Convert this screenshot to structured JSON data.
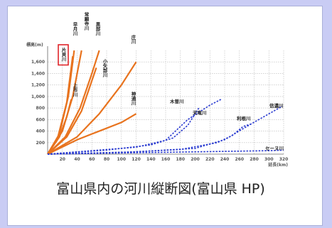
{
  "caption": "富山県内の河川縦断図(富山県 HP)",
  "chart_data": {
    "type": "line",
    "title": "",
    "ylabel": "標高(m)",
    "xlabel": "延長(km)",
    "ylim": [
      0,
      1800
    ],
    "xlim": [
      0,
      320
    ],
    "y_ticks": [
      "200",
      "400",
      "600",
      "800",
      "1,000",
      "1,200",
      "1,400",
      "1,600"
    ],
    "x_ticks": [
      "20",
      "40",
      "60",
      "80",
      "100",
      "120",
      "140",
      "160",
      "180",
      "200",
      "220",
      "240",
      "260",
      "280",
      "300",
      "320"
    ],
    "highlighted_label": "片貝川",
    "series": [
      {
        "name": "片貝川",
        "group": "toyama",
        "x": [
          0,
          14,
          26,
          34
        ],
        "y": [
          0,
          300,
          900,
          1700
        ]
      },
      {
        "name": "早月川",
        "group": "toyama",
        "x": [
          0,
          16,
          28,
          36
        ],
        "y": [
          0,
          350,
          1000,
          1800
        ]
      },
      {
        "name": "常願寺川",
        "group": "toyama",
        "x": [
          0,
          20,
          34,
          46
        ],
        "y": [
          0,
          400,
          1000,
          1800
        ]
      },
      {
        "name": "黒部川",
        "group": "toyama",
        "x": [
          0,
          24,
          44,
          60,
          70
        ],
        "y": [
          0,
          300,
          800,
          1400,
          1800
        ]
      },
      {
        "name": "小矢部川",
        "group": "toyama",
        "x": [
          0,
          26,
          46,
          58,
          66
        ],
        "y": [
          0,
          300,
          750,
          1200,
          1500
        ]
      },
      {
        "name": "上市川",
        "group": "toyama",
        "x": [
          0,
          16,
          26,
          32
        ],
        "y": [
          0,
          300,
          650,
          950
        ]
      },
      {
        "name": "庄川",
        "group": "toyama",
        "x": [
          0,
          40,
          70,
          100,
          120
        ],
        "y": [
          0,
          300,
          700,
          1200,
          1600
        ]
      },
      {
        "name": "神通川",
        "group": "toyama",
        "x": [
          0,
          40,
          70,
          100,
          120
        ],
        "y": [
          0,
          250,
          400,
          550,
          700
        ]
      },
      {
        "name": "木曽川",
        "group": "other",
        "x": [
          0,
          60,
          120,
          160,
          190,
          220,
          235
        ],
        "y": [
          0,
          60,
          120,
          240,
          600,
          850,
          950
        ]
      },
      {
        "name": "天竜川",
        "group": "other",
        "x": [
          0,
          80,
          140,
          170,
          190,
          205
        ],
        "y": [
          0,
          70,
          160,
          280,
          500,
          800
        ]
      },
      {
        "name": "利根川",
        "group": "other",
        "x": [
          0,
          100,
          180,
          230,
          250,
          265,
          275
        ],
        "y": [
          0,
          30,
          80,
          200,
          320,
          480,
          520
        ]
      },
      {
        "name": "信濃川",
        "group": "other",
        "x": [
          0,
          120,
          200,
          240,
          270,
          300,
          318
        ],
        "y": [
          0,
          40,
          100,
          250,
          480,
          700,
          830
        ]
      },
      {
        "name": "セーヌ川",
        "group": "other",
        "x": [
          0,
          100,
          200,
          300,
          320
        ],
        "y": [
          0,
          20,
          40,
          60,
          70
        ]
      }
    ],
    "series_colors": {
      "toyama": "#e8731e",
      "other": "#2a3bd0",
      "highlight": "#e0252a",
      "grid": "#b8b8b8"
    },
    "grid": true
  }
}
